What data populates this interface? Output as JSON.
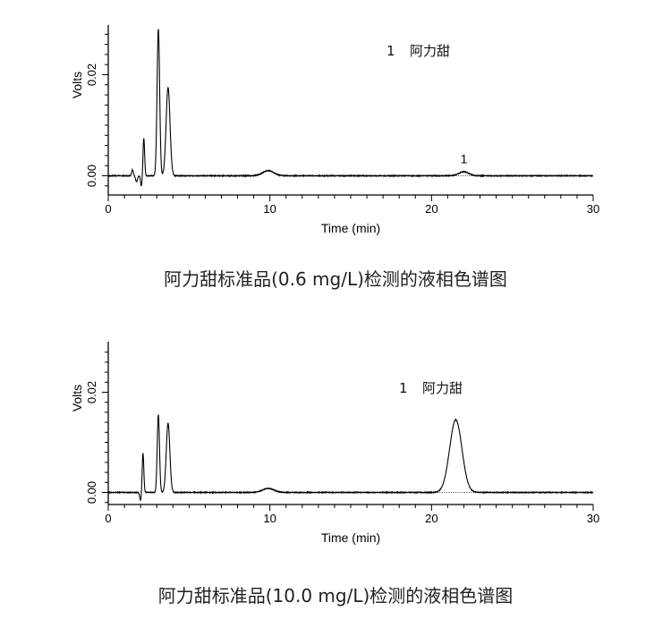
{
  "chart_data": [
    {
      "type": "line",
      "caption": "阿力甜标准品(0.6 mg/L)检测的液相色谱图",
      "xlabel": "Time (min)",
      "ylabel": "Volts",
      "xlim": [
        0,
        30
      ],
      "ylim": [
        -0.004,
        0.03
      ],
      "xticks": [
        0,
        10,
        20,
        30
      ],
      "yticks": [
        0.0,
        0.02
      ],
      "ytick_labels": [
        "0.00",
        "0.02"
      ],
      "legend": {
        "number": "1",
        "name": "阿力甜"
      },
      "peak_labels": [
        {
          "label": "1",
          "x": 22.0,
          "y": 0.0014
        }
      ],
      "peaks": [
        {
          "center": 1.5,
          "height": 0.0012,
          "width": 0.05
        },
        {
          "center": 2.2,
          "height": 0.0074,
          "width": 0.05
        },
        {
          "center": 3.1,
          "height": 0.029,
          "width": 0.08
        },
        {
          "center": 3.7,
          "height": 0.0175,
          "width": 0.12
        },
        {
          "center": 9.9,
          "height": 0.001,
          "width": 0.35
        },
        {
          "center": 22.0,
          "height": 0.0008,
          "width": 0.3
        }
      ],
      "dips": [
        {
          "center": 1.75,
          "depth": -0.0012,
          "width": 0.06
        },
        {
          "center": 2.05,
          "depth": -0.002,
          "width": 0.05
        }
      ]
    },
    {
      "type": "line",
      "caption": "阿力甜标准品(10.0 mg/L)检测的液相色谱图",
      "xlabel": "Time (min)",
      "ylabel": "Volts",
      "xlim": [
        0,
        30
      ],
      "ylim": [
        -0.004,
        0.03
      ],
      "xticks": [
        0,
        10,
        20,
        30
      ],
      "yticks": [
        0.0,
        0.02
      ],
      "ytick_labels": [
        "0.00",
        "0.02"
      ],
      "legend": {
        "number": "1",
        "name": "阿力甜"
      },
      "peak_labels": [],
      "peaks": [
        {
          "center": 2.15,
          "height": 0.0078,
          "width": 0.05
        },
        {
          "center": 3.1,
          "height": 0.0155,
          "width": 0.07
        },
        {
          "center": 3.7,
          "height": 0.0138,
          "width": 0.11
        },
        {
          "center": 9.9,
          "height": 0.0008,
          "width": 0.35
        },
        {
          "center": 21.5,
          "height": 0.0145,
          "width": 0.38
        }
      ],
      "dips": [
        {
          "center": 2.0,
          "depth": -0.0016,
          "width": 0.05
        }
      ]
    }
  ]
}
